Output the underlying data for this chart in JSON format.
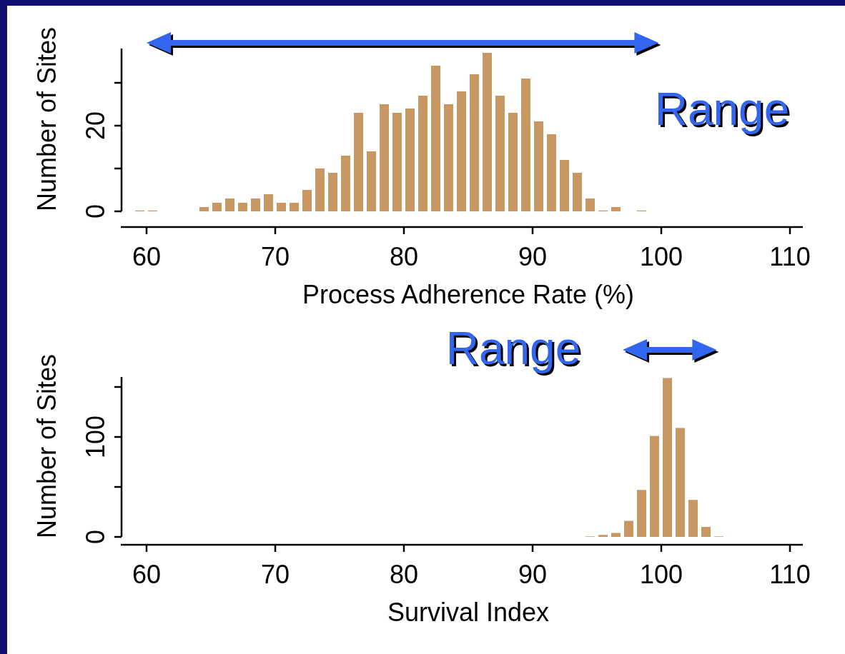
{
  "chart_data": [
    {
      "type": "histogram",
      "xlabel": "Process Adherence Rate (%)",
      "ylabel": "Number of Sites",
      "color": "#c99862",
      "bins": [
        59,
        60,
        61,
        62,
        63,
        64,
        65,
        66,
        67,
        68,
        69,
        70,
        71,
        72,
        73,
        74,
        75,
        76,
        77,
        78,
        79,
        80,
        81,
        82,
        83,
        84,
        85,
        86,
        87,
        88,
        89,
        90,
        91,
        92,
        93,
        94,
        95,
        96,
        97,
        98,
        99
      ],
      "values": [
        0.2,
        0.2,
        0,
        0,
        0,
        1,
        2,
        3,
        2,
        3,
        4,
        2,
        2,
        5,
        10,
        9,
        13,
        23,
        14,
        25,
        23,
        24,
        27,
        34,
        25,
        28,
        32,
        37,
        27,
        23,
        31,
        21,
        18,
        12,
        9,
        3,
        0.2,
        1,
        0,
        0.2
      ],
      "xlim": [
        58,
        111
      ],
      "xticks": [
        60,
        70,
        80,
        90,
        100,
        110
      ],
      "ylim": [
        0,
        38
      ],
      "yticks": [
        0,
        {
          "value": 10,
          "label": null
        },
        20,
        {
          "value": 30,
          "label": null
        }
      ],
      "annotations": [
        "Range"
      ]
    },
    {
      "type": "histogram",
      "xlabel": "Survival Index",
      "ylabel": "Number of Sites",
      "color": "#c99862",
      "bins": [
        94,
        95,
        96,
        97,
        98,
        99,
        100,
        101,
        102,
        103,
        104,
        105
      ],
      "values": [
        0.5,
        2,
        4,
        16,
        47,
        101,
        159,
        109,
        37,
        10,
        0.5
      ],
      "xlim": [
        58,
        111
      ],
      "xticks": [
        60,
        70,
        80,
        90,
        100,
        110
      ],
      "ylim": [
        0,
        160
      ],
      "yticks": [
        0,
        {
          "value": 50,
          "label": null
        },
        100,
        {
          "value": 150,
          "label": null
        }
      ],
      "annotations": [
        "Range"
      ]
    }
  ]
}
